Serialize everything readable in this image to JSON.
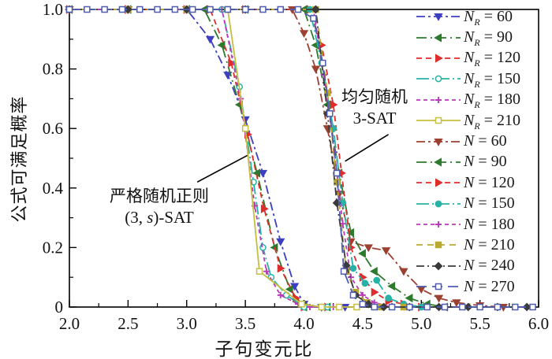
{
  "chart_data": {
    "type": "line",
    "title": "",
    "xlabel": "子句变元比",
    "ylabel": "公式可满足概率",
    "xlim": [
      2.0,
      6.0
    ],
    "ylim": [
      0,
      1.0
    ],
    "grid": false,
    "legend_position": "top-right",
    "xtick_labels": [
      "2.0",
      "2.5",
      "3.0",
      "3.5",
      "4.0",
      "4.5",
      "5.0",
      "5.5",
      "6.0"
    ],
    "xticks": [
      2.0,
      2.5,
      3.0,
      3.5,
      4.0,
      4.5,
      5.0,
      5.5,
      6.0
    ],
    "x_minor_ticks": [
      2.25,
      2.75,
      3.25,
      3.75,
      4.25,
      4.75,
      5.25,
      5.75
    ],
    "ytick_labels": [
      "0",
      "0.2",
      "0.4",
      "0.6",
      "0.8",
      "1.0"
    ],
    "yticks": [
      0,
      0.2,
      0.4,
      0.6,
      0.8,
      1.0
    ],
    "y_minor_ticks": [
      0.1,
      0.3,
      0.5,
      0.7,
      0.9
    ],
    "annotations": [
      {
        "lines": [
          "严格随机正则",
          "(3, s)-SAT"
        ],
        "leader": {
          "from": [
            3.09,
            0.42
          ],
          "to": [
            3.52,
            0.51
          ]
        }
      },
      {
        "lines": [
          "均匀随机",
          "3-SAT"
        ],
        "leader": {
          "from": [
            4.72,
            0.58
          ],
          "to": [
            4.35,
            0.49
          ]
        }
      }
    ],
    "series": [
      {
        "id": "NR60",
        "legend": {
          "var": "N",
          "sub": "R",
          "value": "60"
        },
        "color": "#3e3ec0",
        "dash": "11,4,3,4",
        "marker": "triangle-down",
        "filled": true,
        "points": [
          [
            2.0,
            1
          ],
          [
            2.5,
            1
          ],
          [
            3.0,
            1
          ],
          [
            3.2,
            0.9
          ],
          [
            3.35,
            0.78
          ],
          [
            3.5,
            0.63
          ],
          [
            3.65,
            0.45
          ],
          [
            3.8,
            0.22
          ],
          [
            3.92,
            0.07
          ],
          [
            4.0,
            0.01
          ],
          [
            4.15,
            0
          ],
          [
            4.35,
            0
          ]
        ]
      },
      {
        "id": "NR90",
        "legend": {
          "var": "N",
          "sub": "R",
          "value": "90"
        },
        "color": "#2d7a2d",
        "dash": "13,5,2,5",
        "marker": "triangle-left",
        "filled": true,
        "points": [
          [
            2.0,
            1
          ],
          [
            2.5,
            1
          ],
          [
            3.0,
            1
          ],
          [
            3.15,
            1
          ],
          [
            3.3,
            0.88
          ],
          [
            3.45,
            0.68
          ],
          [
            3.6,
            0.45
          ],
          [
            3.75,
            0.2
          ],
          [
            3.88,
            0.06
          ],
          [
            4.0,
            0
          ],
          [
            4.2,
            0
          ]
        ]
      },
      {
        "id": "NR120",
        "legend": {
          "var": "N",
          "sub": "R",
          "value": "120"
        },
        "color": "#de2d2d",
        "dash": "7,5",
        "marker": "triangle-right",
        "filled": true,
        "points": [
          [
            2.0,
            1
          ],
          [
            2.5,
            1
          ],
          [
            3.0,
            1
          ],
          [
            3.2,
            1
          ],
          [
            3.38,
            0.82
          ],
          [
            3.52,
            0.58
          ],
          [
            3.66,
            0.33
          ],
          [
            3.8,
            0.13
          ],
          [
            3.93,
            0.03
          ],
          [
            4.0,
            0
          ],
          [
            4.2,
            0
          ]
        ]
      },
      {
        "id": "NR150",
        "legend": {
          "var": "N",
          "sub": "R",
          "value": "150"
        },
        "color": "#27b2a6",
        "dash": "16,4,2,4",
        "marker": "circle",
        "filled": false,
        "points": [
          [
            2.0,
            1
          ],
          [
            2.5,
            1
          ],
          [
            3.0,
            1
          ],
          [
            3.3,
            1
          ],
          [
            3.45,
            0.74
          ],
          [
            3.57,
            0.42
          ],
          [
            3.65,
            0.2
          ],
          [
            3.72,
            0.1
          ],
          [
            3.85,
            0.04
          ],
          [
            4.0,
            0
          ],
          [
            4.2,
            0
          ]
        ]
      },
      {
        "id": "NR180",
        "legend": {
          "var": "N",
          "sub": "R",
          "value": "180"
        },
        "color": "#b93ab9",
        "dash": "5,4",
        "marker": "plus",
        "filled": true,
        "points": [
          [
            2.0,
            1
          ],
          [
            2.5,
            1
          ],
          [
            3.0,
            1
          ],
          [
            3.3,
            1
          ],
          [
            3.46,
            0.7
          ],
          [
            3.58,
            0.34
          ],
          [
            3.68,
            0.12
          ],
          [
            3.8,
            0.04
          ],
          [
            3.95,
            0.01
          ],
          [
            4.05,
            0
          ],
          [
            4.25,
            0
          ]
        ]
      },
      {
        "id": "NR210",
        "legend": {
          "var": "N",
          "sub": "R",
          "value": "210"
        },
        "color": "#c6bf3e",
        "dash": "",
        "marker": "square",
        "filled": false,
        "points": [
          [
            2.0,
            1
          ],
          [
            2.5,
            1
          ],
          [
            3.0,
            1
          ],
          [
            3.35,
            1
          ],
          [
            3.5,
            0.6
          ],
          [
            3.62,
            0.12
          ],
          [
            3.98,
            0.01
          ],
          [
            4.15,
            0
          ],
          [
            4.3,
            0
          ],
          [
            4.45,
            0
          ]
        ]
      },
      {
        "id": "N60",
        "legend": {
          "var": "N",
          "sub": "",
          "value": "60"
        },
        "color": "#9c4031",
        "dash": "11,4,3,4",
        "marker": "triangle-down",
        "filled": true,
        "points": [
          [
            2.0,
            1
          ],
          [
            2.5,
            1
          ],
          [
            3.0,
            1
          ],
          [
            3.5,
            1
          ],
          [
            3.9,
            1
          ],
          [
            4.0,
            0.92
          ],
          [
            4.1,
            0.8
          ],
          [
            4.2,
            0.6
          ],
          [
            4.3,
            0.38
          ],
          [
            4.4,
            0.22
          ],
          [
            4.55,
            0.2
          ],
          [
            4.7,
            0.19
          ],
          [
            4.85,
            0.12
          ],
          [
            5.0,
            0.06
          ],
          [
            5.15,
            0.03
          ],
          [
            5.3,
            0.015
          ],
          [
            5.5,
            0.005
          ],
          [
            5.7,
            0
          ]
        ]
      },
      {
        "id": "N90",
        "legend": {
          "var": "N",
          "sub": "",
          "value": "90"
        },
        "color": "#2d7a2d",
        "dash": "13,5,2,5",
        "marker": "triangle-left",
        "filled": true,
        "points": [
          [
            2.0,
            1
          ],
          [
            2.5,
            1
          ],
          [
            3.0,
            1
          ],
          [
            3.5,
            1
          ],
          [
            4.0,
            1
          ],
          [
            4.1,
            0.88
          ],
          [
            4.2,
            0.68
          ],
          [
            4.3,
            0.45
          ],
          [
            4.4,
            0.25
          ],
          [
            4.5,
            0.18
          ],
          [
            4.6,
            0.12
          ],
          [
            4.75,
            0.07
          ],
          [
            4.9,
            0.03
          ],
          [
            5.05,
            0.01
          ],
          [
            5.2,
            0
          ]
        ]
      },
      {
        "id": "N120",
        "legend": {
          "var": "N",
          "sub": "",
          "value": "120"
        },
        "color": "#de2d2d",
        "dash": "7,5",
        "marker": "triangle-right",
        "filled": true,
        "points": [
          [
            2.0,
            1
          ],
          [
            2.5,
            1
          ],
          [
            3.0,
            1
          ],
          [
            3.5,
            1
          ],
          [
            4.05,
            1
          ],
          [
            4.15,
            0.88
          ],
          [
            4.25,
            0.68
          ],
          [
            4.32,
            0.45
          ],
          [
            4.4,
            0.2
          ],
          [
            4.5,
            0.1
          ],
          [
            4.6,
            0.05
          ],
          [
            4.72,
            0.02
          ],
          [
            4.85,
            0.01
          ],
          [
            5.0,
            0
          ]
        ]
      },
      {
        "id": "N150",
        "legend": {
          "var": "N",
          "sub": "",
          "value": "150"
        },
        "color": "#27b2a6",
        "dash": "16,4,2,4",
        "marker": "circle",
        "filled": true,
        "points": [
          [
            2.0,
            1
          ],
          [
            2.5,
            1
          ],
          [
            3.0,
            1
          ],
          [
            3.5,
            1
          ],
          [
            4.05,
            1
          ],
          [
            4.15,
            0.82
          ],
          [
            4.25,
            0.6
          ],
          [
            4.33,
            0.35
          ],
          [
            4.42,
            0.13
          ],
          [
            4.52,
            0.08
          ],
          [
            4.62,
            0.09
          ],
          [
            4.72,
            0.03
          ],
          [
            4.85,
            0.01
          ],
          [
            5.0,
            0
          ]
        ]
      },
      {
        "id": "N180",
        "legend": {
          "var": "N",
          "sub": "",
          "value": "180"
        },
        "color": "#b93ab9",
        "dash": "5,4",
        "marker": "plus",
        "filled": true,
        "points": [
          [
            2.0,
            1
          ],
          [
            2.5,
            1
          ],
          [
            3.0,
            1
          ],
          [
            3.5,
            1
          ],
          [
            4.08,
            1
          ],
          [
            4.17,
            0.78
          ],
          [
            4.26,
            0.52
          ],
          [
            4.33,
            0.28
          ],
          [
            4.4,
            0.1
          ],
          [
            4.5,
            0.04
          ],
          [
            4.6,
            0.015
          ],
          [
            4.75,
            0
          ]
        ]
      },
      {
        "id": "N210",
        "legend": {
          "var": "N",
          "sub": "",
          "value": "210"
        },
        "color": "#b9a92f",
        "dash": "8,6",
        "marker": "square",
        "filled": true,
        "points": [
          [
            2.0,
            1
          ],
          [
            2.5,
            1
          ],
          [
            3.0,
            1
          ],
          [
            3.5,
            1
          ],
          [
            4.1,
            1
          ],
          [
            4.2,
            0.72
          ],
          [
            4.28,
            0.42
          ],
          [
            4.36,
            0.12
          ],
          [
            4.44,
            0.05
          ],
          [
            4.54,
            0.015
          ],
          [
            4.65,
            0
          ],
          [
            4.85,
            0
          ]
        ]
      },
      {
        "id": "N240",
        "legend": {
          "var": "N",
          "sub": "",
          "value": "240"
        },
        "color": "#3a3a3a",
        "dash": "10,4,2,4",
        "marker": "diamond",
        "filled": true,
        "points": [
          [
            2.0,
            1
          ],
          [
            2.5,
            1
          ],
          [
            3.0,
            1
          ],
          [
            3.5,
            1
          ],
          [
            4.1,
            1
          ],
          [
            4.2,
            0.65
          ],
          [
            4.28,
            0.35
          ],
          [
            4.36,
            0.14
          ],
          [
            4.44,
            0.04
          ],
          [
            4.55,
            0.01
          ],
          [
            4.68,
            0
          ],
          [
            4.9,
            0
          ],
          [
            5.15,
            0
          ],
          [
            5.4,
            0
          ],
          [
            5.65,
            0
          ],
          [
            5.9,
            0
          ]
        ]
      },
      {
        "id": "N270",
        "legend": {
          "var": "N",
          "sub": "",
          "value": "270"
        },
        "color": "#4f5cb0",
        "dash": "13,7",
        "marker": "square",
        "filled": false,
        "points": [
          [
            2.0,
            1
          ],
          [
            2.15,
            1
          ],
          [
            2.3,
            1
          ],
          [
            2.45,
            1
          ],
          [
            2.6,
            1
          ],
          [
            2.75,
            1
          ],
          [
            2.9,
            1
          ],
          [
            3.05,
            1
          ],
          [
            3.2,
            1
          ],
          [
            3.35,
            1
          ],
          [
            3.5,
            1
          ],
          [
            3.65,
            1
          ],
          [
            3.8,
            1
          ],
          [
            3.95,
            1
          ],
          [
            4.08,
            0.97
          ],
          [
            4.16,
            0.82
          ],
          [
            4.22,
            0.65
          ],
          [
            4.28,
            0.45
          ],
          [
            4.34,
            0.12
          ],
          [
            4.42,
            0.04
          ],
          [
            4.5,
            0.01
          ],
          [
            4.6,
            0
          ],
          [
            4.75,
            0
          ],
          [
            4.9,
            0
          ],
          [
            5.05,
            0
          ],
          [
            5.2,
            0
          ],
          [
            5.35,
            0
          ],
          [
            5.5,
            0
          ],
          [
            5.65,
            0
          ],
          [
            5.8,
            0
          ],
          [
            5.95,
            0
          ]
        ]
      }
    ]
  }
}
